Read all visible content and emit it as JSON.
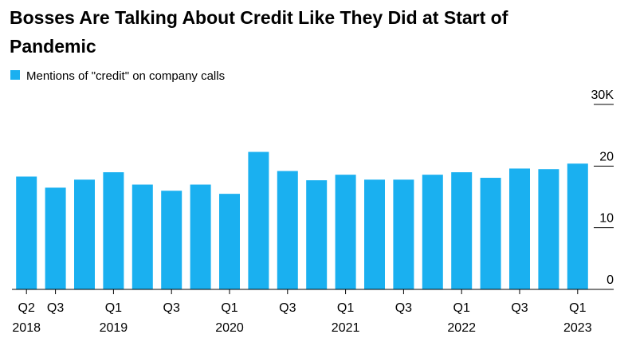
{
  "chart_data": {
    "type": "bar",
    "title": "Bosses Are Talking About Credit Like They Did at Start of Pandemic",
    "categories": [
      "Q2",
      "Q3",
      null,
      "Q1",
      null,
      "Q3",
      null,
      "Q1",
      null,
      "Q3",
      null,
      "Q1",
      null,
      "Q3",
      null,
      "Q1",
      null,
      "Q3",
      null,
      "Q1"
    ],
    "category_years": [
      "2018",
      null,
      null,
      "2019",
      null,
      null,
      null,
      "2020",
      null,
      null,
      null,
      "2021",
      null,
      null,
      null,
      "2022",
      null,
      null,
      null,
      "2023"
    ],
    "series": [
      {
        "name": "Mentions of \"credit\" on company calls",
        "color": "#1ab0f0",
        "values": [
          18.3,
          16.5,
          17.8,
          19.0,
          17.0,
          16.0,
          17.0,
          15.5,
          22.3,
          19.2,
          17.7,
          18.6,
          17.8,
          17.8,
          18.6,
          19.0,
          18.1,
          19.6,
          19.5,
          20.4
        ]
      }
    ],
    "ylim": [
      0,
      30
    ],
    "yticks": [
      0,
      10,
      20,
      {
        "value": 30,
        "label": "30K"
      }
    ]
  }
}
